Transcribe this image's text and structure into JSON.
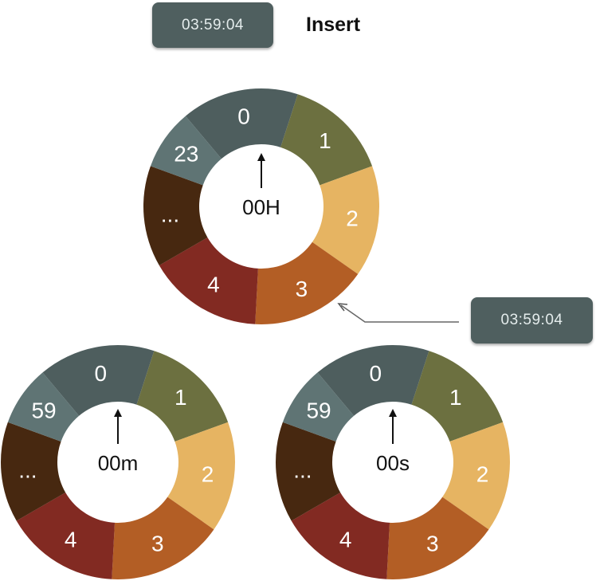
{
  "header": {
    "time_display": "03:59:04",
    "title": "Insert"
  },
  "callout": {
    "time_display": "03:59:04"
  },
  "colors": {
    "seg_0": "#4e5e5e",
    "seg_1": "#6c7040",
    "seg_2": "#e6b462",
    "seg_3": "#b35e25",
    "seg_4": "#822a22",
    "seg_ellipsis": "#472810",
    "seg_last": "#5f7474",
    "pill": "#4f5f5f"
  },
  "wheels": [
    {
      "id": "hours",
      "center_label": "00H",
      "segments": [
        "0",
        "1",
        "2",
        "3",
        "4",
        "...",
        "23"
      ]
    },
    {
      "id": "minutes",
      "center_label": "00m",
      "segments": [
        "0",
        "1",
        "2",
        "3",
        "4",
        "...",
        "59"
      ]
    },
    {
      "id": "seconds",
      "center_label": "00s",
      "segments": [
        "0",
        "1",
        "2",
        "3",
        "4",
        "...",
        "59"
      ]
    }
  ]
}
